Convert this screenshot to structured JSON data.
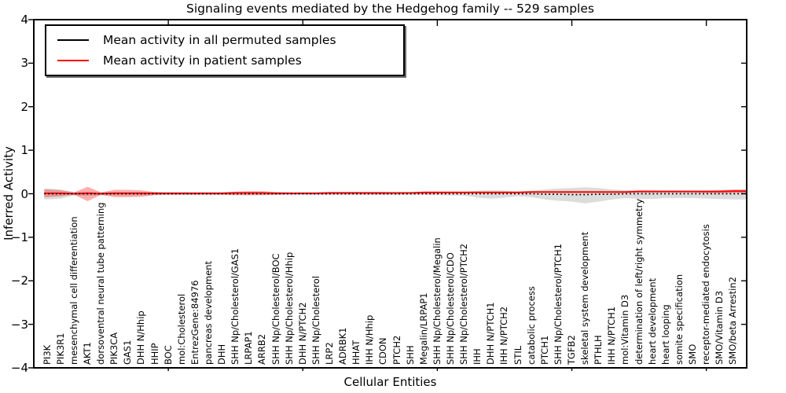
{
  "title": "Signaling events mediated by the Hedgehog family -- 529 samples",
  "axes": {
    "ylabel": "Inferred Activity",
    "xlabel": "Cellular Entities",
    "yticks": [
      "4",
      "3",
      "2",
      "1",
      "0",
      "−1",
      "−2",
      "−3",
      "−4"
    ]
  },
  "legend": [
    {
      "label": "Mean activity in all permuted samples",
      "color": "#000000"
    },
    {
      "label": "Mean activity in patient samples",
      "color": "#ff0000"
    }
  ],
  "colors": {
    "patient_line": "#ff0000",
    "permuted_line": "#000000",
    "patient_fill": "#ff0000",
    "permuted_fill": "#8c8c8c",
    "patient_fill_opacity": 0.32,
    "permuted_fill_opacity": 0.3
  },
  "chart_data": {
    "type": "line",
    "title": "Signaling events mediated by the Hedgehog family -- 529 samples",
    "xlabel": "Cellular Entities",
    "ylabel": "Inferred Activity",
    "ylim": [
      -4,
      4
    ],
    "xticks_major": [
      10,
      20,
      30,
      40,
      50
    ],
    "grid": false,
    "legend_position": "upper left",
    "categories": [
      "PI3K",
      "PIK3R1",
      "mesenchymal cell differentiation",
      "AKT1",
      "dorsoventral neural tube patterning",
      "PIK3CA",
      "GAS1",
      "DHH N/Hhip",
      "HHIP",
      "BOC",
      "mol:Cholesterol",
      "EntrezGene:84976",
      "pancreas development",
      "DHH",
      "SHH Np/Cholesterol/GAS1",
      "LRPAP1",
      "ARRB2",
      "SHH Np/Cholesterol/BOC",
      "SHH Np/Cholesterol/Hhip",
      "DHH N/PTCH2",
      "SHH Np/Cholesterol",
      "LRP2",
      "ADRBK1",
      "HHAT",
      "IHH N/Hhip",
      "CDON",
      "PTCH2",
      "SHH",
      "Megalin/LRPAP1",
      "SHH Np/Cholesterol/Megalin",
      "SHH Np/Cholesterol/CDO",
      "SHH Np/Cholesterol/PTCH2",
      "IHH",
      "DHH N/PTCH1",
      "IHH N/PTCH2",
      "STIL",
      "catabolic process",
      "PTCH1",
      "SHH Np/Cholesterol/PTCH1",
      "TGFB2",
      "skeletal system development",
      "PTHLH",
      "IHH N/PTCH1",
      "mol:Vitamin D3",
      "determination of left/right symmetry",
      "heart development",
      "heart looping",
      "somite specification",
      "SMO",
      "receptor-mediated endocytosis",
      "SMO/Vitamin D3",
      "SMO/beta Arrestin2"
    ],
    "series": [
      {
        "name": "Mean activity in all permuted samples",
        "color": "#000000",
        "style": "dotted",
        "values": [
          0,
          0,
          0,
          0,
          0,
          0,
          0,
          0,
          0,
          0,
          0,
          0,
          0,
          0,
          0,
          0,
          0,
          0,
          0,
          0,
          0,
          0,
          0,
          0,
          0,
          0,
          0,
          0,
          0,
          0,
          0,
          0,
          0,
          0,
          0,
          0,
          0,
          -0.01,
          -0.01,
          -0.02,
          -0.02,
          -0.01,
          -0.01,
          0,
          0,
          0,
          0,
          0,
          0,
          0,
          0,
          0
        ]
      },
      {
        "name": "Mean activity in patient samples",
        "color": "#ff0000",
        "style": "solid",
        "values": [
          0.01,
          0.01,
          0,
          0.01,
          0,
          0.01,
          0.01,
          0.01,
          0.01,
          0.01,
          0.01,
          0.01,
          0.01,
          0.01,
          0.02,
          0.02,
          0.02,
          0.01,
          0.01,
          0.01,
          0.01,
          0.02,
          0.02,
          0.02,
          0.02,
          0.02,
          0.02,
          0.02,
          0.03,
          0.03,
          0.03,
          0.03,
          0.03,
          0.03,
          0.03,
          0.03,
          0.04,
          0.04,
          0.04,
          0.04,
          0.04,
          0.04,
          0.04,
          0.04,
          0.05,
          0.05,
          0.05,
          0.05,
          0.05,
          0.05,
          0.05,
          0.06
        ]
      }
    ],
    "bands": [
      {
        "name": "permuted samples activity range",
        "color": "#8c8c8c",
        "opacity": 0.3,
        "upper": [
          0.12,
          0.1,
          0.04,
          0.05,
          0.04,
          0.04,
          0.04,
          0.04,
          0.03,
          0.03,
          0.03,
          0.03,
          0.03,
          0.03,
          0.03,
          0.03,
          0.03,
          0.03,
          0.03,
          0.03,
          0.03,
          0.03,
          0.03,
          0.03,
          0.03,
          0.03,
          0.03,
          0.03,
          0.03,
          0.03,
          0.04,
          0.04,
          0.07,
          0.08,
          0.07,
          0.05,
          0.07,
          0.1,
          0.12,
          0.13,
          0.15,
          0.13,
          0.1,
          0.08,
          0.09,
          0.09,
          0.08,
          0.08,
          0.08,
          0.08,
          0.09,
          0.1
        ],
        "lower": [
          -0.13,
          -0.11,
          -0.04,
          -0.05,
          -0.04,
          -0.04,
          -0.04,
          -0.04,
          -0.03,
          -0.03,
          -0.03,
          -0.03,
          -0.03,
          -0.03,
          -0.03,
          -0.03,
          -0.03,
          -0.03,
          -0.03,
          -0.03,
          -0.03,
          -0.03,
          -0.03,
          -0.03,
          -0.03,
          -0.03,
          -0.03,
          -0.03,
          -0.03,
          -0.03,
          -0.04,
          -0.04,
          -0.09,
          -0.11,
          -0.09,
          -0.06,
          -0.08,
          -0.13,
          -0.16,
          -0.18,
          -0.22,
          -0.18,
          -0.13,
          -0.1,
          -0.12,
          -0.12,
          -0.1,
          -0.1,
          -0.1,
          -0.11,
          -0.12,
          -0.13
        ]
      },
      {
        "name": "patient samples activity range",
        "color": "#ff0000",
        "opacity": 0.32,
        "upper": [
          0.1,
          0.08,
          0.03,
          0.16,
          0.03,
          0.09,
          0.09,
          0.08,
          0.04,
          0.03,
          0.03,
          0.03,
          0.03,
          0.03,
          0.05,
          0.06,
          0.06,
          0.04,
          0.03,
          0.03,
          0.03,
          0.04,
          0.04,
          0.04,
          0.04,
          0.04,
          0.03,
          0.03,
          0.05,
          0.05,
          0.05,
          0.05,
          0.05,
          0.05,
          0.05,
          0.05,
          0.06,
          0.06,
          0.06,
          0.06,
          0.06,
          0.06,
          0.06,
          0.06,
          0.07,
          0.07,
          0.07,
          0.07,
          0.07,
          0.07,
          0.08,
          0.09
        ],
        "lower": [
          -0.08,
          -0.06,
          -0.02,
          -0.17,
          -0.02,
          -0.08,
          -0.08,
          -0.07,
          -0.03,
          -0.02,
          -0.02,
          -0.02,
          -0.02,
          -0.02,
          -0.03,
          -0.03,
          -0.03,
          -0.02,
          -0.01,
          -0.01,
          -0.01,
          -0.01,
          -0.01,
          -0.01,
          -0.01,
          -0.01,
          -0.01,
          0,
          0,
          0,
          0.01,
          0.01,
          0.01,
          0.01,
          0.01,
          0.01,
          0.02,
          0.02,
          0.02,
          0.02,
          0.02,
          0.02,
          0.02,
          0.02,
          0.03,
          0.03,
          0.03,
          0.03,
          0.03,
          0.02,
          0.02,
          0.02
        ]
      }
    ]
  }
}
